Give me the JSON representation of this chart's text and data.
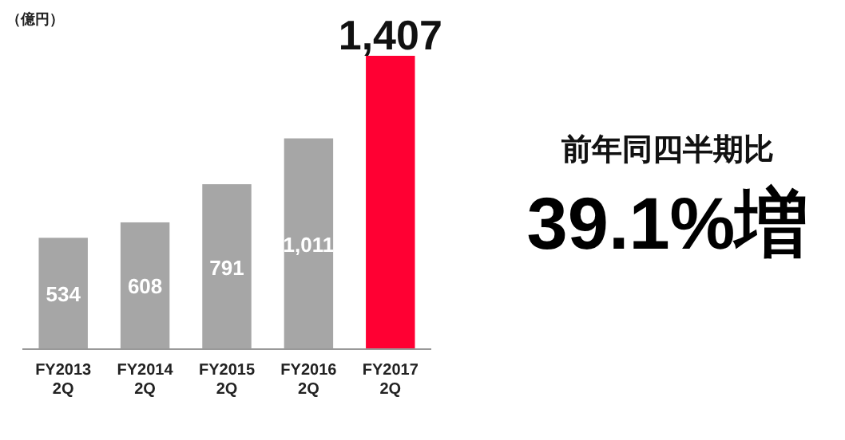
{
  "chart_data": {
    "type": "bar",
    "ylabel": "（億円）",
    "categories": [
      "FY2013\n2Q",
      "FY2014\n2Q",
      "FY2015\n2Q",
      "FY2016\n2Q",
      "FY2017\n2Q"
    ],
    "values": [
      534,
      608,
      791,
      1011,
      1407
    ],
    "colors": [
      "#a6a6a6",
      "#a6a6a6",
      "#a6a6a6",
      "#a6a6a6",
      "#ff0033"
    ],
    "value_labels": [
      "534",
      "608",
      "791",
      "1,011",
      "1,407"
    ],
    "annotations": [
      "前年同四半期比",
      "39.1%増"
    ]
  }
}
